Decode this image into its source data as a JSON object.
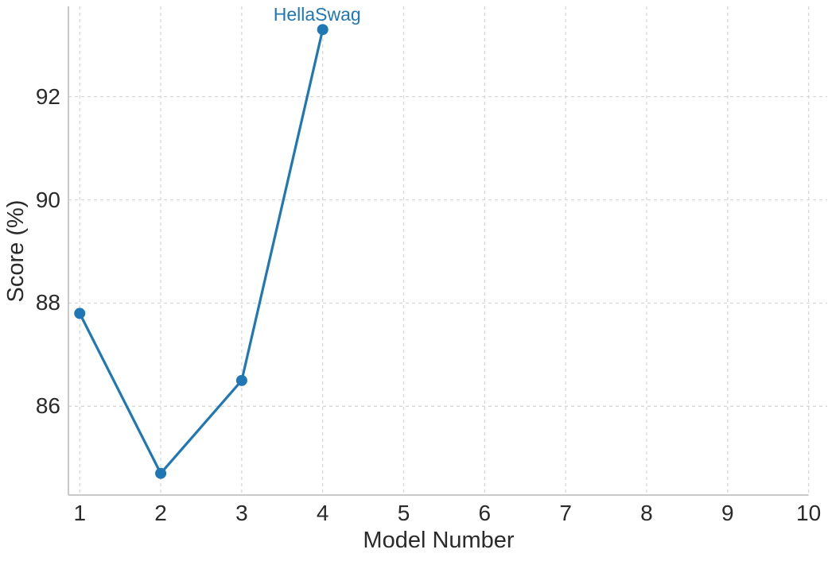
{
  "chart_data": {
    "type": "line",
    "title": "",
    "xlabel": "Model Number",
    "ylabel": "Score (%)",
    "series": [
      {
        "name": "HellaSwag",
        "x": [
          1,
          2,
          3,
          4
        ],
        "y": [
          87.8,
          84.7,
          86.5,
          93.3
        ],
        "color": "#1f77b4",
        "marker": "circle"
      }
    ],
    "annotation": {
      "text": "HellaSwag",
      "x": 4,
      "y": 93.3,
      "color": "#1f77b4"
    },
    "xticks": [
      1,
      2,
      3,
      4,
      5,
      6,
      7,
      8,
      9,
      10
    ],
    "yticks": [
      86,
      88,
      90,
      92
    ],
    "xlim": [
      0.86,
      10.23
    ],
    "ylim": [
      84.28,
      93.75
    ],
    "grid": {
      "on": true,
      "linestyle": "dashed",
      "color": "#d8d8d8"
    },
    "legend_position": "none",
    "axis_color": "#c9c9c9",
    "text_color": "#2a2a2a",
    "background": "#ffffff"
  }
}
